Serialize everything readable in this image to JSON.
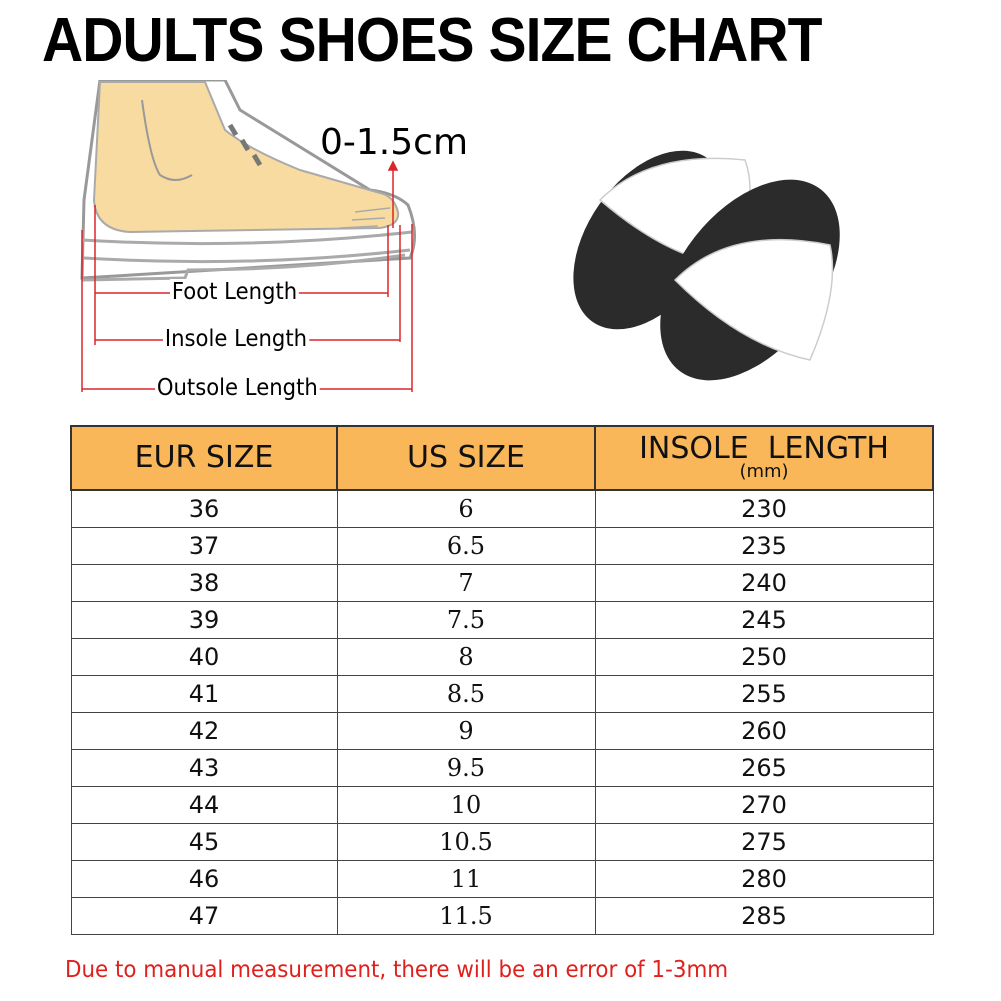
{
  "title": "ADULTS SHOES SIZE CHART",
  "diagram": {
    "toe_gap": "0-1.5cm",
    "foot_length": "Foot Length",
    "insole_length": "Insole Length",
    "outsole_length": "Outsole Length",
    "arrow_color": "#d9262b",
    "foot_color": "#f7dba0"
  },
  "product": {
    "upper_color": "#ffffff",
    "sole_color": "#2b2b2b"
  },
  "table": {
    "header_color": "#f9b75a",
    "headers": [
      "EUR SIZE",
      "US SIZE",
      "INSOLE  LENGTH"
    ],
    "header_unit": "(mm)",
    "rows": [
      [
        "36",
        "6",
        "230"
      ],
      [
        "37",
        "6.5",
        "235"
      ],
      [
        "38",
        "7",
        "240"
      ],
      [
        "39",
        "7.5",
        "245"
      ],
      [
        "40",
        "8",
        "250"
      ],
      [
        "41",
        "8.5",
        "255"
      ],
      [
        "42",
        "9",
        "260"
      ],
      [
        "43",
        "9.5",
        "265"
      ],
      [
        "44",
        "10",
        "270"
      ],
      [
        "45",
        "10.5",
        "275"
      ],
      [
        "46",
        "11",
        "280"
      ],
      [
        "47",
        "11.5",
        "285"
      ]
    ]
  },
  "note": "Due to manual measurement, there will be an error of 1-3mm",
  "note_color": "#e0201c"
}
